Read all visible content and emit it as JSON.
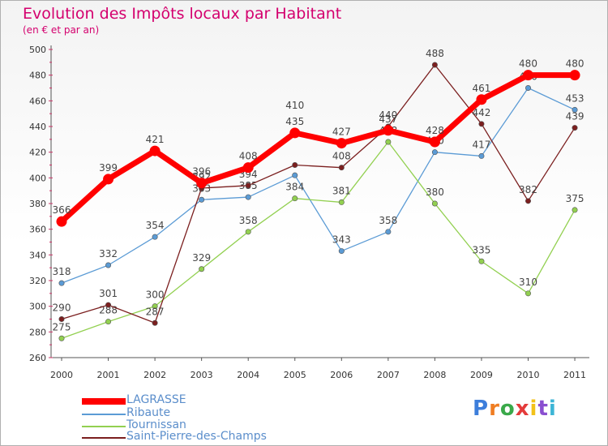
{
  "chart_data": {
    "type": "line",
    "title": "Evolution des Impôts locaux par Habitant",
    "subtitle": "(en € et par an)",
    "x": [
      "2000",
      "2001",
      "2002",
      "2003",
      "2004",
      "2005",
      "2006",
      "2007",
      "2008",
      "2009",
      "2010",
      "2011"
    ],
    "ylim": [
      260,
      500
    ],
    "yticks": [
      "260",
      "280",
      "300",
      "320",
      "340",
      "360",
      "380",
      "400",
      "420",
      "440",
      "460",
      "480",
      "500"
    ],
    "series": [
      {
        "name": "Ribaute",
        "color": "#5b9bd5",
        "values": [
          318,
          332,
          354,
          383,
          385,
          402,
          343,
          358,
          420,
          417,
          470,
          453
        ],
        "labels": [
          "318",
          "332",
          "354",
          "383",
          "385",
          "",
          "343",
          "358",
          "420",
          "417",
          "470",
          "453"
        ]
      },
      {
        "name": "Tournissan",
        "color": "#92d050",
        "values": [
          275,
          288,
          300,
          329,
          358,
          384,
          381,
          428,
          380,
          335,
          310,
          375
        ],
        "labels": [
          "275",
          "288",
          "300",
          "329",
          "358",
          "384",
          "381",
          "428",
          "380",
          "335",
          "310",
          "375"
        ]
      },
      {
        "name": "Saint-Pierre-des-Champs",
        "color": "#7b1f1f",
        "values": [
          290,
          301,
          287,
          392,
          394,
          410,
          408,
          440,
          488,
          442,
          382,
          439
        ],
        "labels": [
          "290",
          "301",
          "287",
          "392",
          "394",
          "",
          "408",
          "440",
          "488",
          "442",
          "382",
          "439"
        ]
      },
      {
        "name": "LAGRASSE",
        "color": "#ff0000",
        "values": [
          366,
          399,
          421,
          396,
          408,
          435,
          427,
          437,
          428,
          461,
          480,
          480
        ],
        "labels": [
          "366",
          "399",
          "421",
          "396",
          "408",
          "435",
          "427",
          "437",
          "428",
          "461",
          "480",
          "480"
        ],
        "extra_labels": [
          {
            "index": 5,
            "text": "410"
          }
        ]
      }
    ],
    "legend": [
      "LAGRASSE",
      "Ribaute",
      "Tournissan",
      "Saint-Pierre-des-Champs"
    ]
  },
  "colors": {
    "title": "#d4006e",
    "axis": "#444444",
    "grid_tick": "#cc3366"
  },
  "branding": {
    "logo": "Proxiti"
  }
}
